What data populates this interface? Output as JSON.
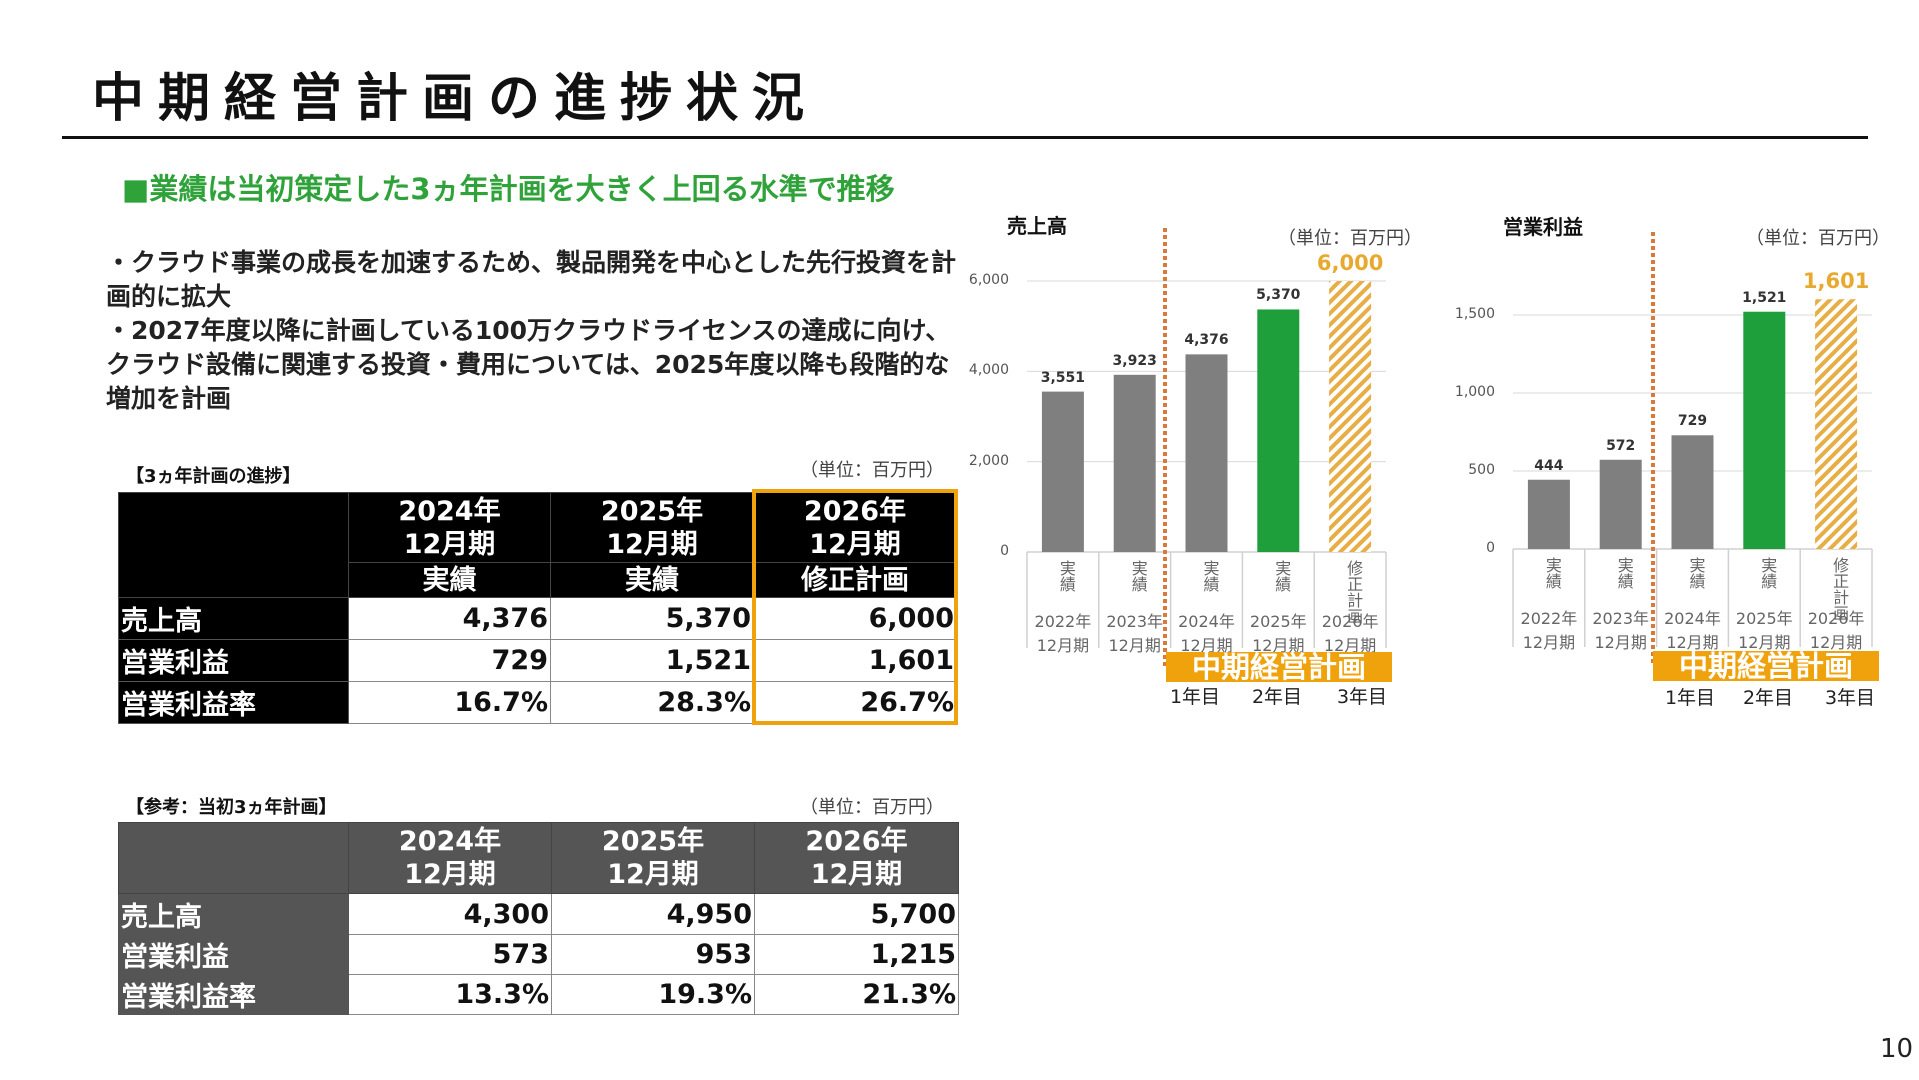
{
  "title": "中期経営計画の進捗状況",
  "subtitle": "■業績は当初策定した3ヵ年計画を大きく上回る水準で推移",
  "body_lines": [
    "・クラウド事業の成長を加速するため、製品開発を中心とした先行投資を計画的に拡大",
    "・2027年度以降に計画している100万クラウドライセンスの達成に向け、クラウド設備に関連する投資・費用については、2025年度以降も段階的な増加を計画"
  ],
  "table_progress": {
    "label": "【3ヵ年計画の進捗】",
    "unit": "（単位：百万円）",
    "columns": [
      {
        "year": "2024年",
        "period": "12月期",
        "status": "実績"
      },
      {
        "year": "2025年",
        "period": "12月期",
        "status": "実績"
      },
      {
        "year": "2026年",
        "period": "12月期",
        "status": "修正計画"
      }
    ],
    "rows": [
      {
        "label": "売上高",
        "values": [
          "4,376",
          "5,370",
          "6,000"
        ]
      },
      {
        "label": "営業利益",
        "values": [
          "729",
          "1,521",
          "1,601"
        ]
      },
      {
        "label": "営業利益率",
        "values": [
          "16.7%",
          "28.3%",
          "26.7%"
        ]
      }
    ]
  },
  "table_original": {
    "label": "【参考：当初3ヵ年計画】",
    "unit": "（単位：百万円）",
    "columns": [
      {
        "year": "2024年",
        "period": "12月期"
      },
      {
        "year": "2025年",
        "period": "12月期"
      },
      {
        "year": "2026年",
        "period": "12月期"
      }
    ],
    "rows": [
      {
        "label": "売上高",
        "values": [
          "4,300",
          "4,950",
          "5,700"
        ]
      },
      {
        "label": "営業利益",
        "values": [
          "573",
          "953",
          "1,215"
        ]
      },
      {
        "label": "営業利益率",
        "values": [
          "13.3%",
          "19.3%",
          "21.3%"
        ]
      }
    ]
  },
  "colors": {
    "actual": "#7f7f7f",
    "latest": "#1f9e3c",
    "plan_hatch": "#e6ae45",
    "plan_box": "#f0a20c",
    "divider": "#d9793a",
    "subtitle": "#2fa33a"
  },
  "plan_box_label": "中期経営計画",
  "plan_years": [
    "1年目",
    "2年目",
    "3年目"
  ],
  "chart_data": [
    {
      "type": "bar",
      "title": "売上高",
      "unit": "（単位：百万円）",
      "categories": [
        {
          "status": "実績",
          "year": "2022年",
          "period": "12月期"
        },
        {
          "status": "実績",
          "year": "2023年",
          "period": "12月期"
        },
        {
          "status": "実績",
          "year": "2024年",
          "period": "12月期"
        },
        {
          "status": "実績",
          "year": "2025年",
          "period": "12月期"
        },
        {
          "status": "修正計画",
          "year": "2026年",
          "period": "12月期"
        }
      ],
      "values": [
        3551,
        3923,
        4376,
        5370,
        6000
      ],
      "labels": [
        "3,551",
        "3,923",
        "4,376",
        "5,370",
        "6,000"
      ],
      "bar_styles": [
        "actual",
        "actual",
        "actual",
        "latest",
        "plan"
      ],
      "yticks": [
        "0",
        "2,000",
        "4,000",
        "6,000"
      ],
      "ytick_values": [
        0,
        2000,
        4000,
        6000
      ],
      "ylim": [
        0,
        6000
      ],
      "grid": true
    },
    {
      "type": "bar",
      "title": "営業利益",
      "unit": "（単位：百万円）",
      "categories": [
        {
          "status": "実績",
          "year": "2022年",
          "period": "12月期"
        },
        {
          "status": "実績",
          "year": "2023年",
          "period": "12月期"
        },
        {
          "status": "実績",
          "year": "2024年",
          "period": "12月期"
        },
        {
          "status": "実績",
          "year": "2025年",
          "period": "12月期"
        },
        {
          "status": "修正計画",
          "year": "2026年",
          "period": "12月期"
        }
      ],
      "values": [
        444,
        572,
        729,
        1521,
        1601
      ],
      "labels": [
        "444",
        "572",
        "729",
        "1,521",
        "1,601"
      ],
      "bar_styles": [
        "actual",
        "actual",
        "actual",
        "latest",
        "plan"
      ],
      "yticks": [
        "0",
        "500",
        "1,000",
        "1,500"
      ],
      "ytick_values": [
        0,
        500,
        1000,
        1500
      ],
      "ylim": [
        0,
        1500
      ],
      "grid": true
    }
  ],
  "page_number": "10"
}
